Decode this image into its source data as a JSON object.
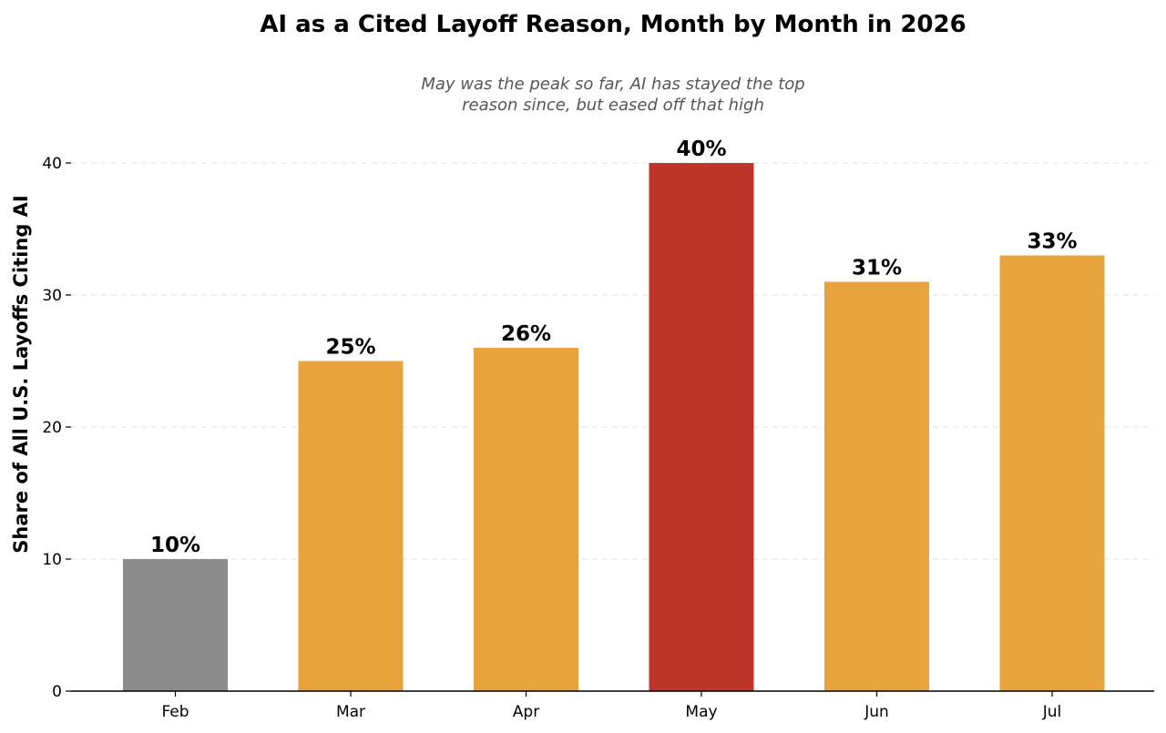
{
  "chart_data": {
    "type": "bar",
    "title": "AI as a Cited Layoff Reason, Month by Month in 2026",
    "subtitle_lines": [
      "May was the peak so far, AI has stayed the top",
      "reason since, but eased off that high"
    ],
    "xlabel": "",
    "ylabel": "Share of All U.S. Layoffs Citing AI",
    "categories": [
      "Feb",
      "Mar",
      "Apr",
      "May",
      "Jun",
      "Jul"
    ],
    "values": [
      10,
      25,
      26,
      40,
      31,
      33
    ],
    "data_labels": [
      "10%",
      "25%",
      "26%",
      "40%",
      "31%",
      "33%"
    ],
    "bar_colors": [
      "#8c8c8c",
      "#e8a33d",
      "#e8a33d",
      "#bd3629",
      "#e8a33d",
      "#e8a33d"
    ],
    "ylim": [
      0,
      40
    ],
    "yticks": [
      0,
      10,
      20,
      30,
      40
    ],
    "grid": true,
    "legend": "none"
  }
}
